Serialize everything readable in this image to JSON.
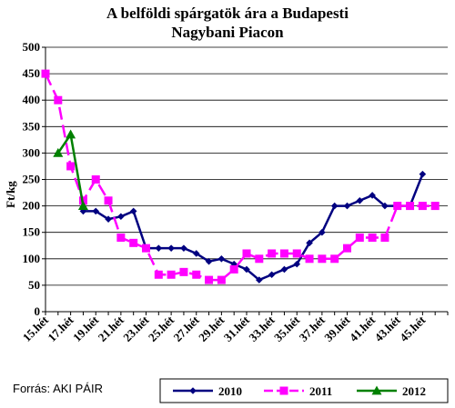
{
  "chart_data": {
    "type": "line",
    "title_lines": [
      "A belföldi spárgatök ára a Budapesti",
      "Nagybani Piacon"
    ],
    "ylabel": "Ft/kg",
    "xlabel": "",
    "ylim": [
      0,
      500
    ],
    "yticks": [
      0,
      50,
      100,
      150,
      200,
      250,
      300,
      350,
      400,
      450,
      500
    ],
    "x_range": [
      15,
      47
    ],
    "x_tick_labels": [
      "15.hét",
      "17.hét",
      "19.hét",
      "21.hét",
      "23.hét",
      "25.hét",
      "27.hét",
      "29.hét",
      "31.hét",
      "33.hét",
      "35.hét",
      "37.hét",
      "39.hét",
      "41.hét",
      "43.hét",
      "45.hét"
    ],
    "x_tick_weeks": [
      15,
      17,
      19,
      21,
      23,
      25,
      27,
      29,
      31,
      33,
      35,
      37,
      39,
      41,
      43,
      45
    ],
    "grid": "horizontal",
    "legend_position": "bottom-right",
    "source": "Forrás: AKI PÁIR",
    "series": [
      {
        "name": "2010",
        "color": "#000080",
        "marker": "diamond",
        "dash": "solid",
        "points": [
          [
            18,
            190
          ],
          [
            19,
            190
          ],
          [
            20,
            175
          ],
          [
            21,
            180
          ],
          [
            22,
            190
          ],
          [
            23,
            120
          ],
          [
            24,
            120
          ],
          [
            25,
            120
          ],
          [
            26,
            120
          ],
          [
            27,
            110
          ],
          [
            28,
            95
          ],
          [
            29,
            100
          ],
          [
            30,
            90
          ],
          [
            31,
            80
          ],
          [
            32,
            60
          ],
          [
            33,
            70
          ],
          [
            34,
            80
          ],
          [
            35,
            90
          ],
          [
            36,
            130
          ],
          [
            37,
            150
          ],
          [
            38,
            200
          ],
          [
            39,
            200
          ],
          [
            40,
            210
          ],
          [
            41,
            220
          ],
          [
            42,
            200
          ],
          [
            43,
            200
          ],
          [
            44,
            200
          ],
          [
            45,
            260
          ]
        ]
      },
      {
        "name": "2011",
        "color": "#ff00ff",
        "marker": "square",
        "dash": "dashed",
        "points": [
          [
            15,
            450
          ],
          [
            16,
            400
          ],
          [
            17,
            275
          ],
          [
            18,
            210
          ],
          [
            19,
            250
          ],
          [
            20,
            210
          ],
          [
            21,
            140
          ],
          [
            22,
            130
          ],
          [
            23,
            120
          ],
          [
            24,
            70
          ],
          [
            25,
            70
          ],
          [
            26,
            75
          ],
          [
            27,
            70
          ],
          [
            28,
            60
          ],
          [
            29,
            60
          ],
          [
            30,
            80
          ],
          [
            31,
            110
          ],
          [
            32,
            100
          ],
          [
            33,
            110
          ],
          [
            34,
            110
          ],
          [
            35,
            110
          ],
          [
            36,
            100
          ],
          [
            37,
            100
          ],
          [
            38,
            100
          ],
          [
            39,
            120
          ],
          [
            40,
            140
          ],
          [
            41,
            140
          ],
          [
            42,
            140
          ],
          [
            43,
            200
          ],
          [
            44,
            200
          ],
          [
            45,
            200
          ],
          [
            46,
            200
          ]
        ]
      },
      {
        "name": "2012",
        "color": "#008000",
        "marker": "triangle",
        "dash": "solid",
        "points": [
          [
            16,
            300
          ],
          [
            17,
            335
          ],
          [
            18,
            200
          ]
        ]
      }
    ]
  }
}
